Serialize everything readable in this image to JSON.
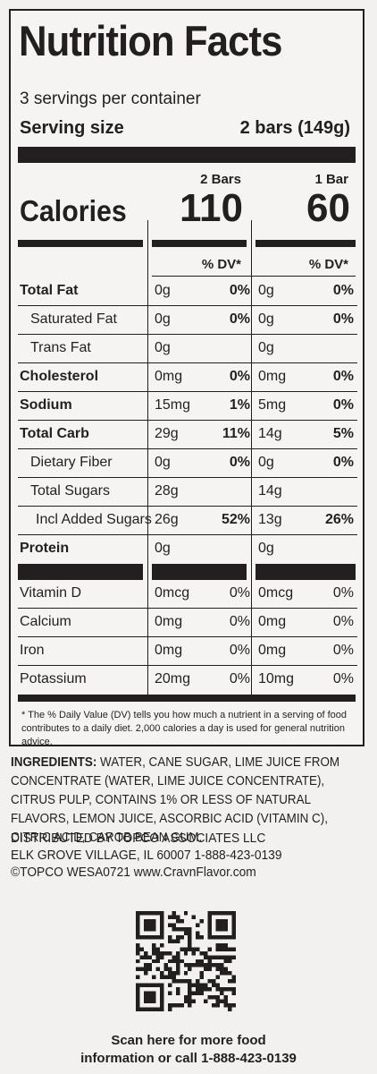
{
  "header": {
    "title": "Nutrition Facts",
    "servings": "3 servings per container",
    "serving_size_label": "Serving size",
    "serving_size_value": "2 bars (149g)"
  },
  "columns": {
    "col1_header": "2 Bars",
    "col2_header": "1 Bar",
    "calories_label": "Calories",
    "col1_calories": "110",
    "col2_calories": "60",
    "dv_header": "% DV*"
  },
  "nutrients": [
    {
      "name": "Total Fat",
      "style": "b",
      "a1": "0g",
      "d1": "0%",
      "a2": "0g",
      "d2": "0%"
    },
    {
      "name": "Saturated Fat",
      "style": "i1",
      "a1": "0g",
      "d1": "0%",
      "a2": "0g",
      "d2": "0%"
    },
    {
      "name": "Trans Fat",
      "style": "i1",
      "a1": "0g",
      "d1": "",
      "a2": "0g",
      "d2": ""
    },
    {
      "name": "Cholesterol",
      "style": "b",
      "a1": "0mg",
      "d1": "0%",
      "a2": "0mg",
      "d2": "0%"
    },
    {
      "name": "Sodium",
      "style": "b",
      "a1": "15mg",
      "d1": "1%",
      "a2": "5mg",
      "d2": "0%"
    },
    {
      "name": "Total Carb",
      "style": "b",
      "a1": "29g",
      "d1": "11%",
      "a2": "14g",
      "d2": "5%"
    },
    {
      "name": "Dietary Fiber",
      "style": "i1",
      "a1": "0g",
      "d1": "0%",
      "a2": "0g",
      "d2": "0%"
    },
    {
      "name": "Total Sugars",
      "style": "i1",
      "a1": "28g",
      "d1": "",
      "a2": "14g",
      "d2": ""
    },
    {
      "name": "Incl Added Sugars",
      "style": "i2",
      "a1": "26g",
      "d1": "52%",
      "a2": "13g",
      "d2": "26%"
    },
    {
      "name": "Protein",
      "style": "b",
      "a1": "0g",
      "d1": "",
      "a2": "0g",
      "d2": ""
    }
  ],
  "vitamins": [
    {
      "name": "Vitamin D",
      "a1": "0mcg",
      "d1": "0%",
      "a2": "0mcg",
      "d2": "0%"
    },
    {
      "name": "Calcium",
      "a1": "0mg",
      "d1": "0%",
      "a2": "0mg",
      "d2": "0%"
    },
    {
      "name": "Iron",
      "a1": "0mg",
      "d1": "0%",
      "a2": "0mg",
      "d2": "0%"
    },
    {
      "name": "Potassium",
      "a1": "20mg",
      "d1": "0%",
      "a2": "10mg",
      "d2": "0%"
    }
  ],
  "footnote": "* The % Daily Value (DV) tells you how much a nutrient in a serving of food contributes to a daily diet. 2,000 calories a day is used for general nutrition advice.",
  "ingredients": {
    "label": "INGREDIENTS:",
    "text": " WATER, CANE SUGAR, LIME JUICE FROM CONCENTRATE (WATER, LIME JUICE CONCENTRATE), CITRUS PULP, CONTAINS 1% OR LESS OF NATURAL FLAVORS, LEMON JUICE, ASCORBIC ACID (VITAMIN C), CITRIC ACID, CAROB BEAN GUM."
  },
  "distributor": {
    "line1": "DISTRIBUTED BY TOPCO ASSOCIATES LLC",
    "line2": "ELK GROVE VILLAGE, IL 60007  1-888-423-0139",
    "line3": "©TOPCO  WESA0721  www.CravnFlavor.com"
  },
  "scan": {
    "line1": "Scan here for more food",
    "line2": "information or call 1-888-423-0139"
  }
}
